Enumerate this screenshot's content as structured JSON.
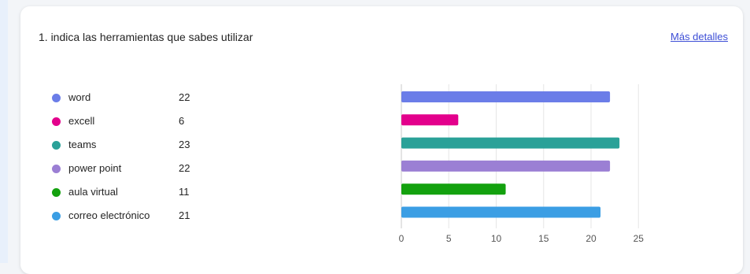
{
  "question": {
    "title": "1. indica las herramientas que sabes utilizar",
    "details_link": "Más detalles"
  },
  "legend": [
    {
      "label": "word",
      "count": "22",
      "color": "#6b7de8"
    },
    {
      "label": "excell",
      "count": "6",
      "color": "#e3008c"
    },
    {
      "label": "teams",
      "count": "23",
      "color": "#2aa198"
    },
    {
      "label": "power point",
      "count": "22",
      "color": "#9b7fd4"
    },
    {
      "label": "aula virtual",
      "count": "11",
      "color": "#13a10e"
    },
    {
      "label": "correo electrónico",
      "count": "21",
      "color": "#3b9ee4"
    }
  ],
  "chart_data": {
    "type": "bar",
    "orientation": "horizontal",
    "categories": [
      "word",
      "excell",
      "teams",
      "power point",
      "aula virtual",
      "correo electrónico"
    ],
    "values": [
      22,
      6,
      23,
      22,
      11,
      21
    ],
    "colors": [
      "#6b7de8",
      "#e3008c",
      "#2aa198",
      "#9b7fd4",
      "#13a10e",
      "#3b9ee4"
    ],
    "xlim": [
      0,
      25
    ],
    "xticks": [
      "0",
      "5",
      "10",
      "15",
      "20",
      "25"
    ],
    "grid": true
  }
}
